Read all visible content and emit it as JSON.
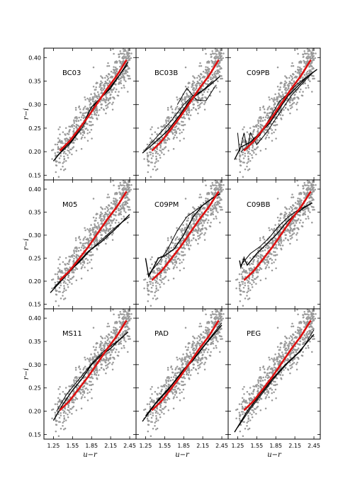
{
  "chart_data": {
    "type": "scatter",
    "layout": "3x3 grid of panels with shared axes",
    "xlabel": "u−r",
    "ylabel": "r−i",
    "xlim": [
      1.1,
      2.55
    ],
    "ylim": [
      0.14,
      0.42
    ],
    "xticks": [
      "1.25",
      "1.55",
      "1.85",
      "2.15",
      "2.45"
    ],
    "yticks": [
      "0.15",
      "0.20",
      "0.25",
      "0.30",
      "0.35",
      "0.40"
    ],
    "grid": false,
    "colors": {
      "points": "#999999",
      "observed_fit": "#dd1111",
      "model_tracks": "#000000"
    },
    "observed_fit": {
      "x": [
        1.35,
        1.5,
        1.65,
        1.8,
        1.95,
        2.1,
        2.25,
        2.4
      ],
      "y": [
        0.202,
        0.222,
        0.248,
        0.275,
        0.305,
        0.335,
        0.362,
        0.395
      ]
    },
    "panels": [
      {
        "label": "BC03",
        "tracks": [
          {
            "x": [
              1.25,
              1.4,
              1.55,
              1.7,
              1.85,
              2.0,
              2.15,
              2.3,
              2.42
            ],
            "y": [
              0.18,
              0.205,
              0.225,
              0.255,
              0.295,
              0.315,
              0.335,
              0.365,
              0.39
            ]
          },
          {
            "x": [
              1.3,
              1.5,
              1.7,
              1.9,
              2.1,
              2.3,
              2.42
            ],
            "y": [
              0.19,
              0.215,
              0.25,
              0.3,
              0.33,
              0.365,
              0.385
            ]
          }
        ]
      },
      {
        "label": "BC03B",
        "tracks": [
          {
            "x": [
              1.2,
              1.4,
              1.6,
              1.8,
              1.95,
              2.1,
              2.25,
              2.42
            ],
            "y": [
              0.197,
              0.22,
              0.245,
              0.28,
              0.31,
              0.325,
              0.34,
              0.36
            ]
          },
          {
            "x": [
              1.25,
              1.45,
              1.65,
              1.85,
              2.0,
              2.15,
              2.3
            ],
            "y": [
              0.205,
              0.235,
              0.265,
              0.3,
              0.32,
              0.33,
              0.35
            ]
          },
          {
            "x": [
              1.75,
              1.9,
              2.05,
              2.2,
              2.35
            ],
            "y": [
              0.3,
              0.335,
              0.31,
              0.308,
              0.34
            ]
          }
        ]
      },
      {
        "label": "C09PB",
        "tracks": [
          {
            "x": [
              1.2,
              1.3,
              1.45,
              1.6,
              1.75,
              1.9,
              2.05,
              2.2,
              2.35,
              2.5
            ],
            "y": [
              0.183,
              0.21,
              0.22,
              0.24,
              0.26,
              0.29,
              0.32,
              0.34,
              0.36,
              0.375
            ]
          },
          {
            "x": [
              1.25,
              1.28,
              1.35,
              1.4,
              1.45,
              1.55,
              1.7,
              1.9,
              2.1,
              2.3,
              2.45
            ],
            "y": [
              0.24,
              0.2,
              0.24,
              0.205,
              0.24,
              0.215,
              0.24,
              0.28,
              0.32,
              0.35,
              0.37
            ]
          },
          {
            "x": [
              1.3,
              1.45,
              1.6,
              1.75,
              1.9,
              2.05,
              2.2,
              2.35
            ],
            "y": [
              0.2,
              0.215,
              0.235,
              0.27,
              0.305,
              0.325,
              0.345,
              0.36
            ]
          }
        ]
      },
      {
        "label": "M05",
        "tracks": [
          {
            "x": [
              1.2,
              1.4,
              1.6,
              1.8,
              2.0,
              2.2,
              2.45
            ],
            "y": [
              0.175,
              0.205,
              0.235,
              0.265,
              0.285,
              0.31,
              0.345
            ]
          },
          {
            "x": [
              1.25,
              1.45,
              1.65,
              1.85,
              2.05,
              2.25,
              2.45
            ],
            "y": [
              0.185,
              0.215,
              0.24,
              0.27,
              0.295,
              0.32,
              0.34
            ]
          }
        ]
      },
      {
        "label": "C09PM",
        "tracks": [
          {
            "x": [
              1.25,
              1.3,
              1.45,
              1.55,
              1.7,
              1.85,
              2.0,
              2.15,
              2.3,
              2.42
            ],
            "y": [
              0.25,
              0.21,
              0.25,
              0.255,
              0.27,
              0.3,
              0.34,
              0.365,
              0.38,
              0.39
            ]
          },
          {
            "x": [
              1.3,
              1.45,
              1.6,
              1.75,
              1.9,
              2.05,
              2.2,
              2.35
            ],
            "y": [
              0.215,
              0.24,
              0.27,
              0.31,
              0.34,
              0.355,
              0.37,
              0.385
            ]
          }
        ]
      },
      {
        "label": "C09BB",
        "tracks": [
          {
            "x": [
              1.28,
              1.3,
              1.35,
              1.4,
              1.55,
              1.7,
              1.85,
              2.0,
              2.15,
              2.3,
              2.42
            ],
            "y": [
              0.245,
              0.23,
              0.25,
              0.235,
              0.26,
              0.28,
              0.3,
              0.325,
              0.345,
              0.36,
              0.37
            ]
          },
          {
            "x": [
              1.3,
              1.45,
              1.6,
              1.75,
              1.9,
              2.05,
              2.2,
              2.35
            ],
            "y": [
              0.235,
              0.26,
              0.275,
              0.295,
              0.32,
              0.34,
              0.355,
              0.365
            ]
          }
        ]
      },
      {
        "label": "MS11",
        "tracks": [
          {
            "x": [
              1.25,
              1.4,
              1.55,
              1.7,
              1.85,
              2.0,
              2.15,
              2.3,
              2.42
            ],
            "y": [
              0.18,
              0.215,
              0.245,
              0.27,
              0.3,
              0.32,
              0.335,
              0.355,
              0.37
            ]
          },
          {
            "x": [
              1.3,
              1.45,
              1.6,
              1.75,
              1.9,
              2.05,
              2.2,
              2.35
            ],
            "y": [
              0.2,
              0.235,
              0.26,
              0.285,
              0.31,
              0.33,
              0.345,
              0.36
            ]
          }
        ]
      },
      {
        "label": "PAD",
        "tracks": [
          {
            "x": [
              1.2,
              1.4,
              1.6,
              1.8,
              2.0,
              2.2,
              2.45
            ],
            "y": [
              0.178,
              0.215,
              0.245,
              0.28,
              0.31,
              0.345,
              0.385
            ]
          },
          {
            "x": [
              1.25,
              1.45,
              1.65,
              1.85,
              2.05,
              2.25,
              2.45
            ],
            "y": [
              0.19,
              0.225,
              0.255,
              0.29,
              0.32,
              0.355,
              0.39
            ]
          }
        ]
      },
      {
        "label": "PEG",
        "tracks": [
          {
            "x": [
              1.2,
              1.4,
              1.6,
              1.8,
              2.0,
              2.2,
              2.45
            ],
            "y": [
              0.155,
              0.2,
              0.235,
              0.27,
              0.3,
              0.325,
              0.365
            ]
          },
          {
            "x": [
              1.25,
              1.45,
              1.65,
              1.85,
              2.05,
              2.25,
              2.45
            ],
            "y": [
              0.165,
              0.205,
              0.24,
              0.275,
              0.305,
              0.33,
              0.375
            ]
          }
        ]
      }
    ]
  }
}
